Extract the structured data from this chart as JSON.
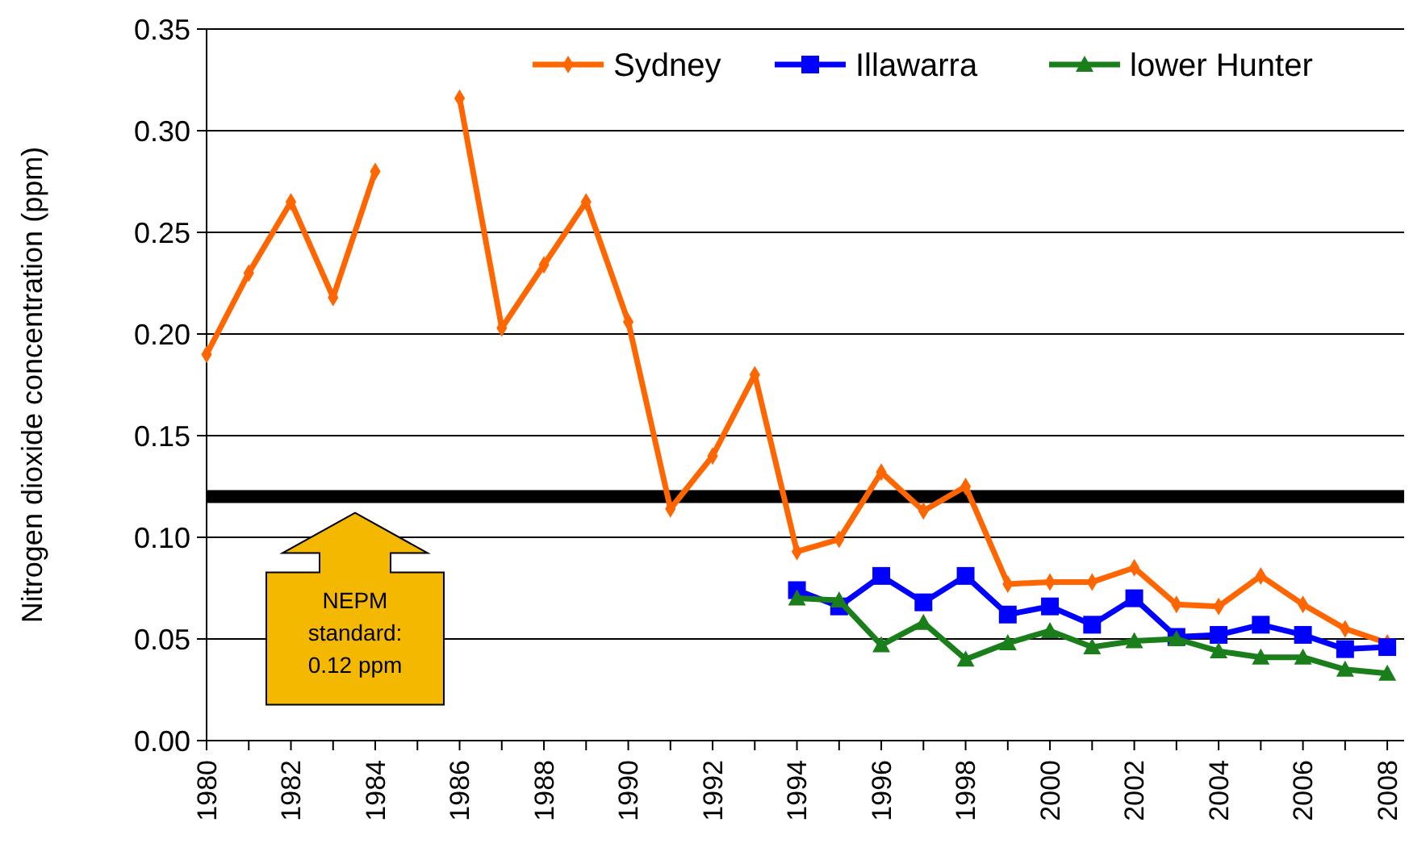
{
  "chart_data": {
    "type": "line",
    "ylabel": "Nitrogen dioxide concentration (ppm)",
    "x": [
      1980,
      1981,
      1982,
      1983,
      1984,
      1985,
      1986,
      1987,
      1988,
      1989,
      1990,
      1991,
      1992,
      1993,
      1994,
      1995,
      1996,
      1997,
      1998,
      1999,
      2000,
      2001,
      2002,
      2003,
      2004,
      2005,
      2006,
      2007,
      2008
    ],
    "series": [
      {
        "name": "Sydney",
        "color": "#ff6600",
        "marker": "diamond",
        "values": [
          0.19,
          0.23,
          0.265,
          0.218,
          0.28,
          null,
          0.316,
          0.203,
          0.234,
          0.265,
          0.206,
          0.114,
          0.14,
          0.18,
          0.093,
          0.099,
          0.132,
          0.113,
          0.125,
          0.077,
          0.078,
          0.078,
          0.085,
          0.067,
          0.066,
          0.081,
          0.067,
          0.055,
          0.048
        ]
      },
      {
        "name": "Illawarra",
        "color": "#0000ff",
        "marker": "square",
        "values": [
          null,
          null,
          null,
          null,
          null,
          null,
          null,
          null,
          null,
          null,
          null,
          null,
          null,
          null,
          0.074,
          0.066,
          0.081,
          0.068,
          0.081,
          0.062,
          0.066,
          0.057,
          0.07,
          0.051,
          0.052,
          0.057,
          0.052,
          0.045,
          0.046
        ]
      },
      {
        "name": "lower Hunter",
        "color": "#1a7f1a",
        "marker": "triangle",
        "values": [
          null,
          null,
          null,
          null,
          null,
          null,
          null,
          null,
          null,
          null,
          null,
          null,
          null,
          null,
          0.07,
          0.069,
          0.047,
          0.058,
          0.04,
          0.048,
          0.054,
          0.046,
          0.049,
          0.05,
          0.044,
          0.041,
          0.041,
          0.035,
          0.033
        ]
      }
    ],
    "xlim": [
      1980,
      2008.4
    ],
    "xticks": [
      1980,
      {
        "value": 1981,
        "label": null
      },
      1982,
      {
        "value": 1983,
        "label": null
      },
      1984,
      {
        "value": 1985,
        "label": null
      },
      1986,
      {
        "value": 1987,
        "label": null
      },
      1988,
      {
        "value": 1989,
        "label": null
      },
      1990,
      {
        "value": 1991,
        "label": null
      },
      1992,
      {
        "value": 1993,
        "label": null
      },
      1994,
      {
        "value": 1995,
        "label": null
      },
      1996,
      {
        "value": 1997,
        "label": null
      },
      1998,
      {
        "value": 1999,
        "label": null
      },
      2000,
      {
        "value": 2001,
        "label": null
      },
      2002,
      {
        "value": 2003,
        "label": null
      },
      2004,
      {
        "value": 2005,
        "label": null
      },
      2006,
      {
        "value": 2007,
        "label": null
      },
      2008
    ],
    "ylim": [
      0,
      0.35
    ],
    "yticks": [
      {
        "value": 0,
        "label": "0.00"
      },
      {
        "value": 0.05,
        "label": "0.05"
      },
      {
        "value": 0.1,
        "label": "0.10"
      },
      {
        "value": 0.15,
        "label": "0.15"
      },
      {
        "value": 0.2,
        "label": "0.20"
      },
      {
        "value": 0.25,
        "label": "0.25"
      },
      {
        "value": 0.3,
        "label": "0.30"
      },
      {
        "value": 0.35,
        "label": "0.35"
      }
    ],
    "grid": "y",
    "legend": "top right",
    "line_style": "solid",
    "ref_lines": [
      {
        "axis": "y",
        "value": 0.12,
        "color": "#000000"
      }
    ],
    "annotations": [
      "NEPM standard: 0.12 ppm"
    ]
  }
}
